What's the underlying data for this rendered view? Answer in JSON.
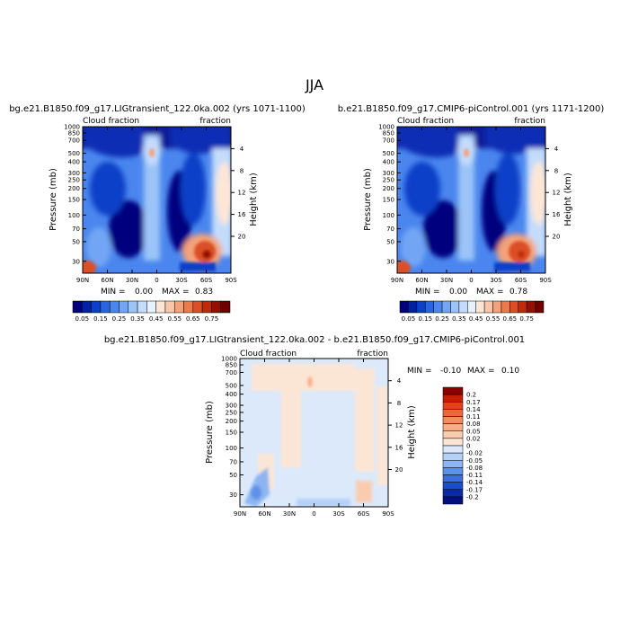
{
  "figure": {
    "season_title": "JJA"
  },
  "chart_data": [
    {
      "type": "heatmap",
      "title": "bg.e21.B1850.f09_g17.LIGtransient_122.0ka.002 (yrs 1071-1100)",
      "left_label": "Cloud fraction",
      "right_label": "fraction",
      "ylabel": "Pressure (mb)",
      "y2label": "Height (km)",
      "x_ticks": [
        "90N",
        "60N",
        "30N",
        "0",
        "30S",
        "60S",
        "90S"
      ],
      "y_ticks": [
        "1000",
        "850",
        "700",
        "500",
        "400",
        "300",
        "250",
        "200",
        "150",
        "100",
        "70",
        "50",
        "30"
      ],
      "y2_ticks": [
        "4",
        "8",
        "12",
        "16",
        "20"
      ],
      "min_label": "MIN =",
      "min_value": "0.00",
      "max_label": "MAX =",
      "max_value": "0.83",
      "colorbar": {
        "labels": [
          "0.05",
          "0.15",
          "0.25",
          "0.35",
          "0.45",
          "0.55",
          "0.65",
          "0.75"
        ],
        "colors": [
          "#00007f",
          "#0020a6",
          "#0d40c8",
          "#2a64e0",
          "#4a86ee",
          "#72a6f4",
          "#9cc4f8",
          "#c4dcfb",
          "#e8f1fe",
          "#fde6d6",
          "#f8c6a8",
          "#f3a27a",
          "#ec7a4c",
          "#dc4f26",
          "#bf2a0d",
          "#961002",
          "#6e0000"
        ]
      }
    },
    {
      "type": "heatmap",
      "title": "b.e21.B1850.f09_g17.CMIP6-piControl.001 (yrs 1171-1200)",
      "left_label": "Cloud fraction",
      "right_label": "fraction",
      "ylabel": "Pressure (mb)",
      "y2label": "Height (km)",
      "x_ticks": [
        "90N",
        "60N",
        "30N",
        "0",
        "30S",
        "60S",
        "90S"
      ],
      "y_ticks": [
        "1000",
        "850",
        "700",
        "500",
        "400",
        "300",
        "250",
        "200",
        "150",
        "100",
        "70",
        "50",
        "30"
      ],
      "y2_ticks": [
        "4",
        "8",
        "12",
        "16",
        "20"
      ],
      "min_label": "MIN =",
      "min_value": "0.00",
      "max_label": "MAX =",
      "max_value": "0.78",
      "colorbar": {
        "labels": [
          "0.05",
          "0.15",
          "0.25",
          "0.35",
          "0.45",
          "0.55",
          "0.65",
          "0.75"
        ],
        "colors": [
          "#00007f",
          "#0020a6",
          "#0d40c8",
          "#2a64e0",
          "#4a86ee",
          "#72a6f4",
          "#9cc4f8",
          "#c4dcfb",
          "#e8f1fe",
          "#fde6d6",
          "#f8c6a8",
          "#f3a27a",
          "#ec7a4c",
          "#dc4f26",
          "#bf2a0d",
          "#961002",
          "#6e0000"
        ]
      }
    },
    {
      "type": "heatmap",
      "title": "bg.e21.B1850.f09_g17.LIGtransient_122.0ka.002 - b.e21.B1850.f09_g17.CMIP6-piControl.001",
      "left_label": "Cloud fraction",
      "right_label": "fraction",
      "ylabel": "Pressure (mb)",
      "y2label": "Height (km)",
      "x_ticks": [
        "90N",
        "60N",
        "30N",
        "0",
        "30S",
        "60S",
        "90S"
      ],
      "y_ticks": [
        "1000",
        "850",
        "700",
        "500",
        "400",
        "300",
        "250",
        "200",
        "150",
        "100",
        "70",
        "50",
        "30"
      ],
      "y2_ticks": [
        "4",
        "8",
        "12",
        "16",
        "20"
      ],
      "min_label": "MIN =",
      "min_value": "-0.10",
      "max_label": "MAX =",
      "max_value": "0.10",
      "colorbar": {
        "labels": [
          "0.2",
          "0.17",
          "0.14",
          "0.11",
          "0.08",
          "0.05",
          "0.02",
          "0",
          "-0.02",
          "-0.05",
          "-0.08",
          "-0.11",
          "-0.14",
          "-0.17",
          "-0.2"
        ],
        "colors": [
          "#8b0000",
          "#c81c05",
          "#e8401a",
          "#f2643a",
          "#f58a5e",
          "#f7ae88",
          "#f9ccb0",
          "#fbe6d6",
          "#dbe9fb",
          "#b6d1f7",
          "#8cb5f1",
          "#5e92e8",
          "#3a6fdc",
          "#1d4cc9",
          "#0a2aa8",
          "#00117e"
        ]
      }
    }
  ]
}
